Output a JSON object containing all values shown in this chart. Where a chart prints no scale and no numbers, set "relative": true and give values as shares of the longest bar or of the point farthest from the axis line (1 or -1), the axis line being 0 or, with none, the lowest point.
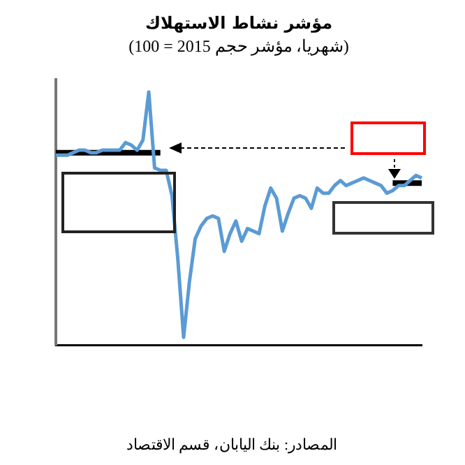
{
  "chart_data": {
    "type": "line",
    "title": "مؤشر نشاط الاستهلاك",
    "subtitle": "(شهريا، مؤشر حجم 2015 = 100)",
    "relative": true,
    "legend": false,
    "grid": false,
    "marker": "none",
    "categories": [
      null,
      null,
      null,
      null,
      null,
      null,
      null,
      null,
      null,
      null,
      null,
      null,
      null,
      null,
      null,
      null,
      null,
      null,
      null,
      null,
      null,
      null,
      null,
      null,
      null,
      null,
      null,
      null,
      null,
      null,
      null,
      null,
      null,
      null,
      null,
      null,
      null,
      null,
      null,
      null,
      null,
      null,
      null,
      null,
      null,
      null,
      null,
      null,
      null,
      null,
      null,
      null,
      null,
      null,
      null,
      null,
      null,
      null,
      null,
      null,
      null,
      null,
      null,
      null
    ],
    "series": [
      {
        "color": "#5b9bd5",
        "values": [
          0.75,
          0.75,
          0.75,
          0.76,
          0.77,
          0.77,
          0.76,
          0.76,
          0.77,
          0.77,
          0.77,
          0.77,
          0.8,
          0.79,
          0.77,
          0.81,
          1,
          0.7,
          0.69,
          0.69,
          0.59,
          0.34,
          0.03,
          0.25,
          0.42,
          0.47,
          0.5,
          0.51,
          0.5,
          0.37,
          0.44,
          0.49,
          0.41,
          0.46,
          0.45,
          0.44,
          0.55,
          0.62,
          0.58,
          0.45,
          0.52,
          0.58,
          0.59,
          0.58,
          0.54,
          0.62,
          0.6,
          0.6,
          0.63,
          0.65,
          0.63,
          0.64,
          0.65,
          0.66,
          0.65,
          0.64,
          0.63,
          0.6,
          0.61,
          0.63,
          0.63,
          0.65,
          0.67,
          0.66
        ]
      },
      {
        "color": "#000000",
        "values": [
          0.76,
          0.76,
          0.76,
          0.76,
          0.76,
          0.76,
          0.76,
          0.76,
          0.76,
          0.76,
          0.76,
          0.76,
          0.76,
          0.76,
          0.76,
          0.76,
          0.76,
          0.76,
          0.76,
          null,
          null,
          null,
          null,
          null,
          null,
          null,
          null,
          null,
          null,
          null,
          null,
          null,
          null,
          null,
          null,
          null,
          null,
          null,
          null,
          null,
          null,
          null,
          null,
          null,
          null,
          null,
          null,
          null,
          null,
          null,
          null,
          null,
          null,
          null,
          null,
          null,
          null,
          null,
          0.64,
          0.64,
          0.64,
          0.64,
          0.64,
          0.64
        ]
      }
    ],
    "annotations": [
      "المصادر: بنك اليابان، قسم الاقتصاد"
    ]
  }
}
